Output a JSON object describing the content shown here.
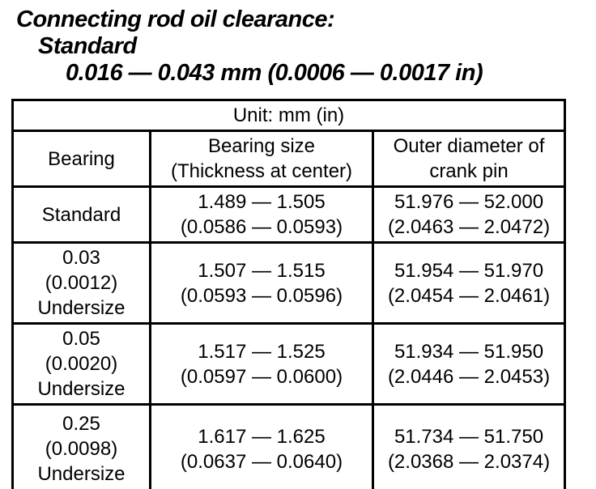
{
  "title": {
    "line1": "Connecting rod oil clearance:",
    "line2": "Standard",
    "line3": "0.016 — 0.043 mm (0.0006 — 0.0017 in)"
  },
  "table": {
    "unit_label": "Unit: mm (in)",
    "columns": {
      "bearing": "Bearing",
      "bearing_size": "Bearing size\n(Thickness at center)",
      "crank_pin": "Outer diameter of\ncrank pin"
    },
    "rows": [
      {
        "bearing": "Standard",
        "bearing_size": "1.489 — 1.505\n(0.0586 — 0.0593)",
        "crank_pin": "51.976 — 52.000\n(2.0463 — 2.0472)"
      },
      {
        "bearing": "0.03\n(0.0012)\nUndersize",
        "bearing_size": "1.507 — 1.515\n(0.0593 — 0.0596)",
        "crank_pin": "51.954 — 51.970\n(2.0454 — 2.0461)"
      },
      {
        "bearing": "0.05\n(0.0020)\nUndersize",
        "bearing_size": "1.517 — 1.525\n(0.0597 — 0.0600)",
        "crank_pin": "51.934 — 51.950\n(2.0446 — 2.0453)"
      },
      {
        "bearing": "0.25\n(0.0098)\nUndersize",
        "bearing_size": "1.617 — 1.625\n(0.0637 — 0.0640)",
        "crank_pin": "51.734 — 51.750\n(2.0368 — 2.0374)"
      }
    ]
  },
  "colors": {
    "text": "#000000",
    "background": "#ffffff",
    "border": "#000000"
  }
}
